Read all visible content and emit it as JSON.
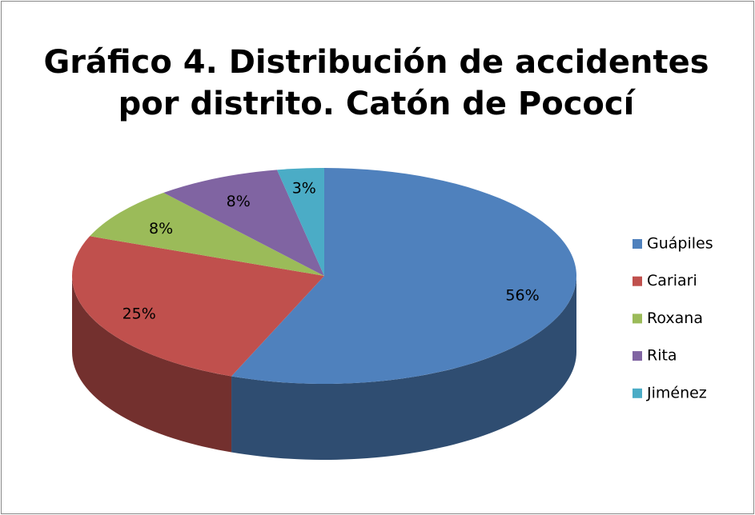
{
  "chart_data": {
    "type": "pie",
    "title": "Gráfico 4. Distribución de accidentes por distrito. Catón de Pococí",
    "categories": [
      "Guápiles",
      "Cariari",
      "Roxana",
      "Rita",
      "Jiménez"
    ],
    "values": [
      56,
      25,
      8,
      8,
      3
    ],
    "value_labels": [
      "56%",
      "25%",
      "8%",
      "8%",
      "3%"
    ],
    "colors": [
      "#4f81bd",
      "#c0504d",
      "#9bbb59",
      "#8064a2",
      "#4bacc6"
    ],
    "legend": "right"
  }
}
